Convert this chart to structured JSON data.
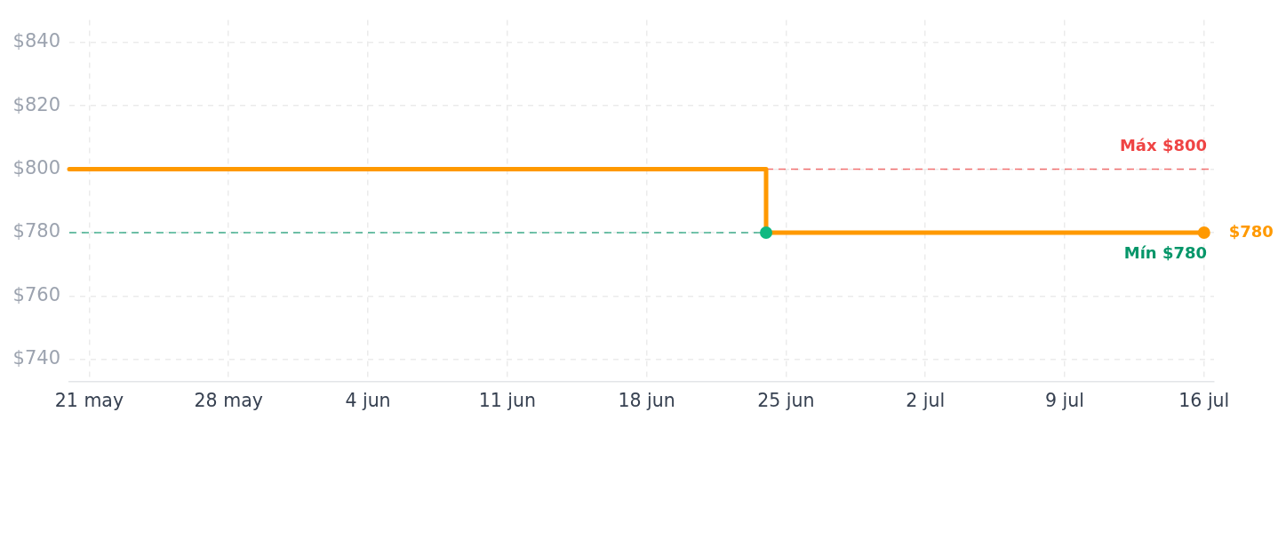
{
  "chart_data": {
    "type": "step",
    "xlim": [
      "--05-20",
      "--07-16T12:00"
    ],
    "xticks": [
      {
        "value": "--05-21",
        "label": "21 may"
      },
      {
        "value": "--05-28",
        "label": "28 may"
      },
      {
        "value": "--06-04",
        "label": "4 jun"
      },
      {
        "value": "--06-11",
        "label": "11 jun"
      },
      {
        "value": "--06-18",
        "label": "18 jun"
      },
      {
        "value": "--06-25",
        "label": "25 jun"
      },
      {
        "value": "--07-02",
        "label": "2 jul"
      },
      {
        "value": "--07-09",
        "label": "9 jul"
      },
      {
        "value": "--07-16",
        "label": "16 jul"
      }
    ],
    "ylim": [
      733,
      847
    ],
    "yticks": [
      {
        "value": 740,
        "label": "$740"
      },
      {
        "value": 760,
        "label": "$760"
      },
      {
        "value": 780,
        "label": "$780"
      },
      {
        "value": 800,
        "label": "$800"
      },
      {
        "value": 820,
        "label": "$820"
      },
      {
        "value": 840,
        "label": "$840"
      }
    ],
    "grid": true,
    "series": [
      {
        "color": "#ff9900",
        "x": [
          "--05-20",
          "--06-24",
          "--07-16"
        ],
        "values": [
          800,
          780,
          780
        ],
        "marker": "none"
      },
      {
        "type": "scatter",
        "color": "#10b981",
        "x": [
          "--06-24"
        ],
        "values": [
          780
        ],
        "marker": "circle"
      },
      {
        "type": "scatter",
        "color": "#ff9900",
        "x": [
          "--07-16"
        ],
        "values": [
          780
        ],
        "marker": "circle",
        "value_labels": [
          "$780"
        ]
      }
    ],
    "ref_lines": [
      {
        "axis": "y",
        "value": 800,
        "label": "Máx $800",
        "color": "#ef4444",
        "line_style": "dashed"
      },
      {
        "axis": "y",
        "value": 780,
        "label": "Mín $780",
        "color": "#059669",
        "line_style": "dashed"
      }
    ]
  }
}
